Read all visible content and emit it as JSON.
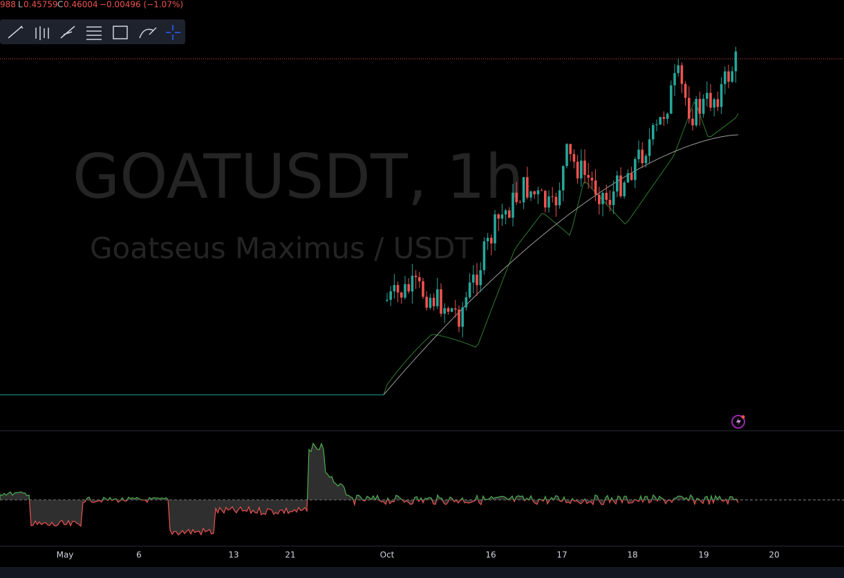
{
  "header": {
    "prefix": "988",
    "low_label": "L",
    "low": "0.45759",
    "close_label": "C",
    "close": "0.46004",
    "change": "−0.00496 (−1.07%)"
  },
  "watermark": {
    "symbol": "GOATUSDT, 1h",
    "name": "Goatseus Maximus / USDT"
  },
  "time_axis": [
    "May",
    "6",
    "13",
    "21",
    "Oct",
    "16",
    "17",
    "18",
    "19",
    "20"
  ]
}
